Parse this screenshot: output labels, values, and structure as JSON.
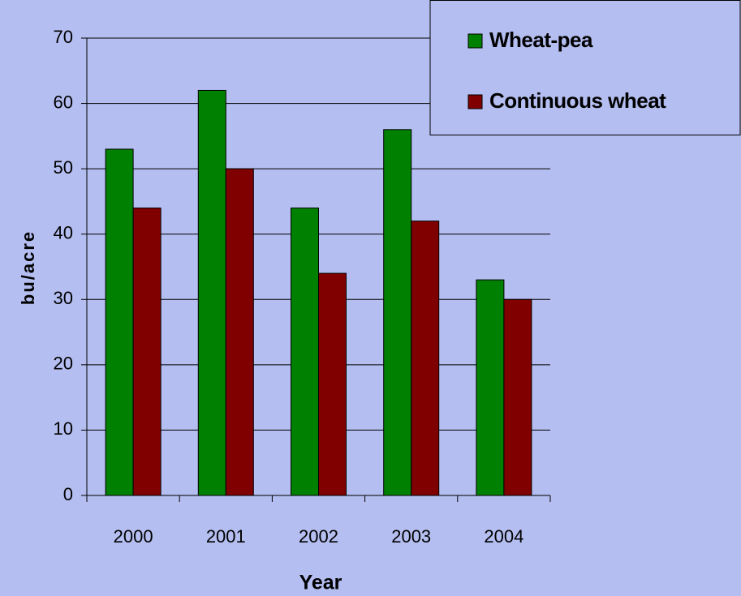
{
  "chart_data": {
    "type": "bar",
    "xlabel": "Year",
    "ylabel": "bu/acre",
    "categories": [
      "2000",
      "2001",
      "2002",
      "2003",
      "2004"
    ],
    "series": [
      {
        "name": "Wheat-pea",
        "color": "#008000",
        "values": [
          53,
          62,
          44,
          56,
          33
        ]
      },
      {
        "name": "Continuous wheat",
        "color": "#800000",
        "values": [
          44,
          50,
          34,
          42,
          30
        ]
      }
    ],
    "ylim": [
      0,
      70
    ],
    "yticks": [
      0,
      10,
      20,
      30,
      40,
      50,
      60,
      70
    ],
    "grid": true,
    "legend": "upper right"
  }
}
